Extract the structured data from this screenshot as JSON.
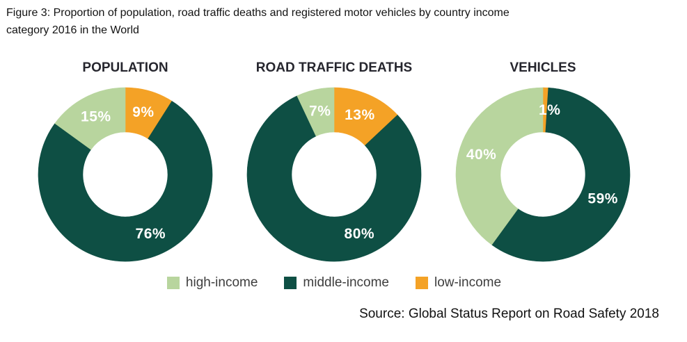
{
  "figure": {
    "title_lines": [
      "Figure 3: Proportion of population, road traffic deaths and registered motor vehicles by country income",
      "category 2016 in the World"
    ],
    "source": "Source: Global Status Report on Road Safety 2018"
  },
  "colors": {
    "high_income": "#b8d59e",
    "middle_income": "#0e4f44",
    "low_income": "#f4a226",
    "slice_label_text": "#ffffff",
    "chart_title_text": "#26262e",
    "legend_text": "#3d3d3d"
  },
  "legend": {
    "items": [
      {
        "label": "high-income",
        "color": "#b8d59e"
      },
      {
        "label": "middle-income",
        "color": "#0e4f44"
      },
      {
        "label": "low-income",
        "color": "#f4a226"
      }
    ]
  },
  "chart_data": [
    {
      "type": "pie",
      "subtype": "donut",
      "title": "POPULATION",
      "unit": "%",
      "start_angle_deg": 0,
      "direction": "clockwise",
      "slices": [
        {
          "category": "low-income",
          "value": 9,
          "label": "9%",
          "color": "#f4a226"
        },
        {
          "category": "middle-income",
          "value": 76,
          "label": "76%",
          "color": "#0e4f44",
          "label_angle_deg": 157
        },
        {
          "category": "high-income",
          "value": 15,
          "label": "15%",
          "color": "#b8d59e"
        }
      ]
    },
    {
      "type": "pie",
      "subtype": "donut",
      "title": "ROAD TRAFFIC DEATHS",
      "unit": "%",
      "start_angle_deg": 0,
      "direction": "clockwise",
      "slices": [
        {
          "category": "low-income",
          "value": 13,
          "label": "13%",
          "color": "#f4a226"
        },
        {
          "category": "middle-income",
          "value": 80,
          "label": "80%",
          "color": "#0e4f44",
          "label_angle_deg": 157
        },
        {
          "category": "high-income",
          "value": 7,
          "label": "7%",
          "color": "#b8d59e"
        }
      ]
    },
    {
      "type": "pie",
      "subtype": "donut",
      "title": "VEHICLES",
      "unit": "%",
      "start_angle_deg": 0,
      "direction": "clockwise",
      "slices": [
        {
          "category": "low-income",
          "value": 1,
          "label": "1%",
          "color": "#f4a226",
          "label_angle_deg": 6
        },
        {
          "category": "middle-income",
          "value": 59,
          "label": "59%",
          "color": "#0e4f44",
          "label_angle_deg": 112
        },
        {
          "category": "high-income",
          "value": 40,
          "label": "40%",
          "color": "#b8d59e"
        }
      ]
    }
  ]
}
